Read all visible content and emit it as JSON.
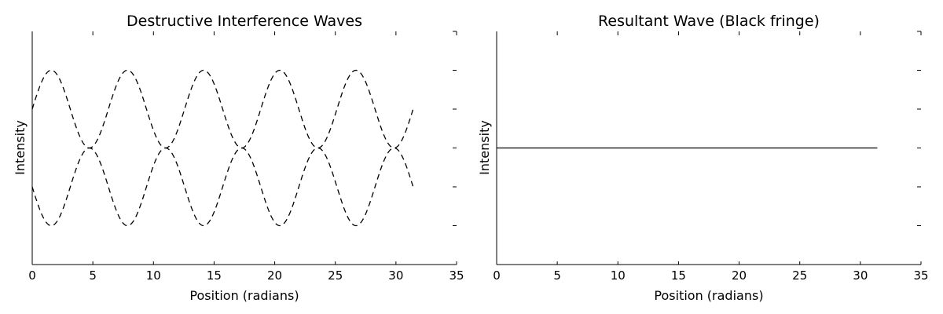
{
  "chart_data": [
    {
      "type": "line",
      "title": "Destructive Interference Waves",
      "xlabel": "Position (radians)",
      "ylabel": "Intensity",
      "xlim": [
        0,
        35
      ],
      "ylim": [
        -1.5,
        1.5
      ],
      "xticks": [
        "0",
        "5",
        "10",
        "15",
        "20",
        "25",
        "30",
        "35"
      ],
      "x_range": [
        0,
        31.4
      ],
      "series": [
        {
          "function": "0.5 + 0.5*sin(x)",
          "style": "dashed",
          "color": "#000000"
        },
        {
          "function": "-0.5 - 0.5*sin(x)",
          "style": "dashed",
          "color": "#000000"
        }
      ],
      "grid": false,
      "ytick_labels_shown": false
    },
    {
      "type": "line",
      "title": "Resultant Wave (Black fringe)",
      "xlabel": "Position (radians)",
      "ylabel": "Intensity",
      "xlim": [
        0,
        35
      ],
      "ylim": [
        -1.5,
        1.5
      ],
      "xticks": [
        "0",
        "5",
        "10",
        "15",
        "20",
        "25",
        "30",
        "35"
      ],
      "x_range": [
        0,
        31.4
      ],
      "series": [
        {
          "function": "0",
          "style": "solid",
          "color": "#000000"
        }
      ],
      "grid": false,
      "ytick_labels_shown": false
    }
  ]
}
